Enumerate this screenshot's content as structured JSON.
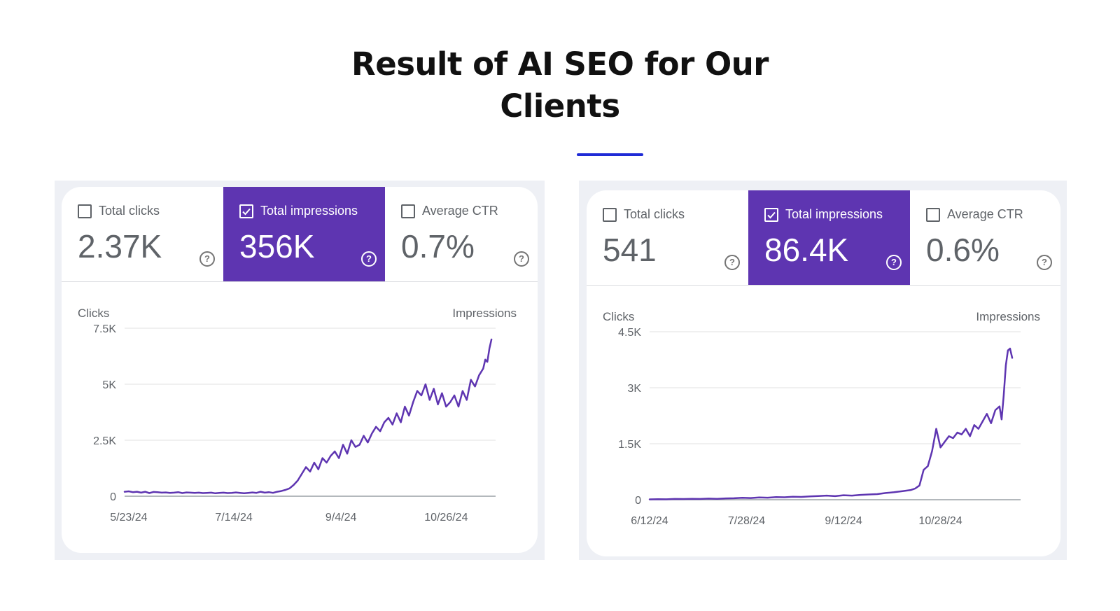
{
  "page": {
    "title_line1": "Result of AI SEO for Our",
    "title_line2": "Clients",
    "accent_color": "#1f2bd6",
    "series_color": "#5e35b1"
  },
  "cards": [
    {
      "metrics": [
        {
          "label": "Total clicks",
          "value": "2.37K",
          "checked": false
        },
        {
          "label": "Total impressions",
          "value": "356K",
          "checked": true
        },
        {
          "label": "Average CTR",
          "value": "0.7%",
          "checked": false
        }
      ]
    },
    {
      "metrics": [
        {
          "label": "Total clicks",
          "value": "541",
          "checked": false
        },
        {
          "label": "Total impressions",
          "value": "86.4K",
          "checked": true
        },
        {
          "label": "Average CTR",
          "value": "0.6%",
          "checked": false
        }
      ]
    }
  ],
  "chart_data": [
    {
      "type": "line",
      "title": "Total impressions",
      "ylabel": "Clicks",
      "y2label": "Impressions",
      "xlabel": "",
      "ylim": [
        0,
        7500
      ],
      "yticks": [
        0,
        2500,
        5000,
        7500
      ],
      "yticklabels": [
        "0",
        "2.5K",
        "5K",
        "7.5K"
      ],
      "xlim": [
        0,
        180
      ],
      "xticks": [
        2,
        53,
        105,
        156
      ],
      "xticklabels": [
        "5/23/24",
        "7/14/24",
        "9/4/24",
        "10/26/24"
      ],
      "grid": true,
      "series": [
        {
          "name": "Impressions",
          "x": [
            0,
            2,
            4,
            6,
            8,
            10,
            12,
            14,
            16,
            18,
            20,
            22,
            24,
            26,
            28,
            30,
            32,
            34,
            36,
            38,
            40,
            42,
            44,
            46,
            48,
            50,
            52,
            54,
            56,
            58,
            60,
            62,
            64,
            66,
            68,
            70,
            72,
            74,
            76,
            78,
            80,
            82,
            84,
            86,
            88,
            90,
            92,
            94,
            96,
            98,
            100,
            102,
            104,
            106,
            108,
            110,
            112,
            114,
            116,
            118,
            120,
            122,
            124,
            126,
            128,
            130,
            132,
            134,
            136,
            138,
            140,
            142,
            144,
            146,
            148,
            150,
            152,
            154,
            156,
            158,
            160,
            162,
            164,
            166,
            168,
            170,
            172,
            174,
            175,
            176,
            177,
            178
          ],
          "values": [
            200,
            220,
            180,
            200,
            160,
            200,
            140,
            190,
            180,
            160,
            170,
            150,
            160,
            180,
            140,
            170,
            160,
            150,
            160,
            140,
            150,
            160,
            130,
            150,
            160,
            140,
            150,
            170,
            150,
            130,
            150,
            170,
            150,
            200,
            160,
            180,
            150,
            200,
            230,
            280,
            350,
            500,
            700,
            1000,
            1300,
            1100,
            1500,
            1200,
            1700,
            1500,
            1800,
            2000,
            1700,
            2300,
            1900,
            2500,
            2200,
            2300,
            2700,
            2400,
            2800,
            3100,
            2900,
            3300,
            3500,
            3200,
            3700,
            3300,
            4000,
            3600,
            4200,
            4700,
            4500,
            5000,
            4300,
            4800,
            4100,
            4600,
            4000,
            4200,
            4500,
            4000,
            4700,
            4300,
            5200,
            4900,
            5400,
            5700,
            6100,
            6000,
            6600,
            7000
          ]
        }
      ]
    },
    {
      "type": "line",
      "title": "Total impressions",
      "ylabel": "Clicks",
      "y2label": "Impressions",
      "xlabel": "",
      "ylim": [
        0,
        4500
      ],
      "yticks": [
        0,
        1500,
        3000,
        4500
      ],
      "yticklabels": [
        "0",
        "1.5K",
        "3K",
        "4.5K"
      ],
      "xlim": [
        0,
        176
      ],
      "xticks": [
        0,
        46,
        92,
        138
      ],
      "xticklabels": [
        "6/12/24",
        "7/28/24",
        "9/12/24",
        "10/28/24"
      ],
      "grid": true,
      "series": [
        {
          "name": "Impressions",
          "x": [
            0,
            4,
            8,
            12,
            16,
            20,
            24,
            28,
            32,
            36,
            40,
            44,
            48,
            52,
            56,
            60,
            64,
            68,
            72,
            76,
            80,
            84,
            88,
            92,
            96,
            100,
            104,
            108,
            112,
            116,
            120,
            124,
            126,
            128,
            130,
            132,
            134,
            136,
            138,
            140,
            142,
            144,
            146,
            148,
            150,
            152,
            154,
            156,
            158,
            160,
            162,
            164,
            166,
            167,
            168,
            169,
            170,
            171,
            172
          ],
          "values": [
            10,
            15,
            12,
            20,
            18,
            25,
            20,
            30,
            25,
            35,
            40,
            50,
            45,
            60,
            55,
            70,
            65,
            80,
            75,
            90,
            100,
            110,
            95,
            120,
            110,
            130,
            140,
            150,
            180,
            200,
            230,
            260,
            300,
            380,
            800,
            900,
            1300,
            1900,
            1400,
            1550,
            1700,
            1650,
            1800,
            1750,
            1900,
            1700,
            2000,
            1900,
            2100,
            2300,
            2050,
            2400,
            2500,
            2150,
            2800,
            3600,
            4000,
            4050,
            3800
          ]
        }
      ]
    }
  ]
}
